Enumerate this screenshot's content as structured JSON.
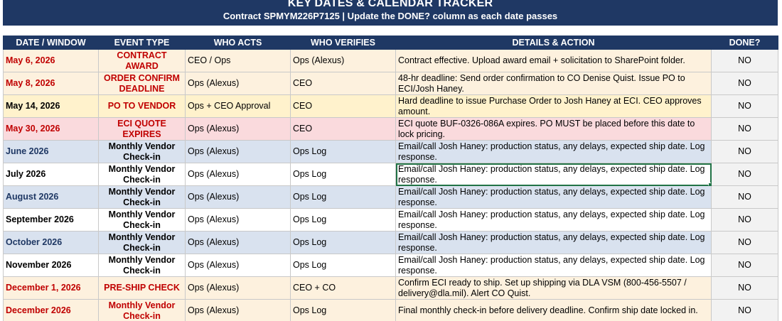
{
  "header": {
    "title": "KEY DATES & CALENDAR TRACKER",
    "subtitle": "Contract SPMYM226P7125  |  Update the DONE? column as each date passes"
  },
  "columns": [
    "DATE / WINDOW",
    "EVENT TYPE",
    "WHO ACTS",
    "WHO VERIFIES",
    "DETAILS & ACTION",
    "DONE?"
  ],
  "colors": {
    "header_bg": "#1f3864",
    "row_orange": "#fdf1de",
    "row_yellow": "#fff2cc",
    "row_pink": "#fadadd",
    "row_blue": "#d9e2ef",
    "text_red": "#c00000",
    "text_navy": "#1f3864",
    "selection": "#217346"
  },
  "rows": [
    {
      "date": "May 6, 2026",
      "event": "CONTRACT AWARD",
      "who_acts": "CEO / Ops",
      "who_verifies": "Ops (Alexus)",
      "details": "Contract effective. Upload award email + solicitation to SharePoint folder.",
      "done": "NO",
      "fill": "orange",
      "date_color": "red",
      "event_color": "red"
    },
    {
      "date": "May 8, 2026",
      "event": "ORDER CONFIRM DEADLINE",
      "who_acts": "Ops (Alexus)",
      "who_verifies": "CEO",
      "details": "48-hr deadline: Send order confirmation to CO Denise Quist. Issue PO to ECI/Josh Haney.",
      "done": "NO",
      "fill": "orange",
      "date_color": "red",
      "event_color": "red"
    },
    {
      "date": "May 14, 2026",
      "event": "PO TO VENDOR",
      "who_acts": "Ops + CEO Approval",
      "who_verifies": "CEO",
      "details": "Hard deadline to issue Purchase Order to Josh Haney at ECI. CEO approves amount.",
      "done": "NO",
      "fill": "yellow",
      "date_color": "black",
      "event_color": "red"
    },
    {
      "date": "May 30, 2026",
      "event": "ECI QUOTE EXPIRES",
      "who_acts": "Ops (Alexus)",
      "who_verifies": "CEO",
      "details": "ECI quote BUF-0326-086A expires. PO MUST be placed before this date to lock pricing.",
      "done": "NO",
      "fill": "pink",
      "date_color": "red",
      "event_color": "red"
    },
    {
      "date": "June 2026",
      "event": "Monthly Vendor Check-in",
      "who_acts": "Ops (Alexus)",
      "who_verifies": "Ops Log",
      "details": "Email/call Josh Haney: production status, any delays, expected ship date. Log response.",
      "done": "NO",
      "fill": "blue",
      "date_color": "navy",
      "event_color": "black"
    },
    {
      "date": "July 2026",
      "event": "Monthly Vendor Check-in",
      "who_acts": "Ops (Alexus)",
      "who_verifies": "Ops Log",
      "details": "Email/call Josh Haney: production status, any delays, expected ship date. Log response.",
      "done": "NO",
      "fill": "white",
      "date_color": "black",
      "event_color": "black",
      "selected": true
    },
    {
      "date": "August 2026",
      "event": "Monthly Vendor Check-in",
      "who_acts": "Ops (Alexus)",
      "who_verifies": "Ops Log",
      "details": "Email/call Josh Haney: production status, any delays, expected ship date. Log response.",
      "done": "NO",
      "fill": "blue",
      "date_color": "navy",
      "event_color": "black"
    },
    {
      "date": "September 2026",
      "event": "Monthly Vendor Check-in",
      "who_acts": "Ops (Alexus)",
      "who_verifies": "Ops Log",
      "details": "Email/call Josh Haney: production status, any delays, expected ship date. Log response.",
      "done": "NO",
      "fill": "white",
      "date_color": "black",
      "event_color": "black"
    },
    {
      "date": "October 2026",
      "event": "Monthly Vendor Check-in",
      "who_acts": "Ops (Alexus)",
      "who_verifies": "Ops Log",
      "details": "Email/call Josh Haney: production status, any delays, expected ship date. Log response.",
      "done": "NO",
      "fill": "blue",
      "date_color": "navy",
      "event_color": "black"
    },
    {
      "date": "November 2026",
      "event": "Monthly Vendor Check-in",
      "who_acts": "Ops (Alexus)",
      "who_verifies": "Ops Log",
      "details": "Email/call Josh Haney: production status, any delays, expected ship date. Log response.",
      "done": "NO",
      "fill": "white",
      "date_color": "black",
      "event_color": "black"
    },
    {
      "date": "December 1, 2026",
      "event": "PRE-SHIP CHECK",
      "who_acts": "Ops (Alexus)",
      "who_verifies": "CEO + CO",
      "details": "Confirm ECI ready to ship. Set up shipping via DLA VSM (800-456-5507 / delivery@dla.mil). Alert CO Quist.",
      "done": "NO",
      "fill": "orange",
      "date_color": "red",
      "event_color": "red"
    },
    {
      "date": "December 2026",
      "event": "Monthly Vendor Check-in",
      "who_acts": "Ops (Alexus)",
      "who_verifies": "Ops Log",
      "details": "Final monthly check-in before delivery deadline. Confirm ship date locked in.",
      "done": "NO",
      "fill": "orange",
      "date_color": "red",
      "event_color": "red"
    }
  ]
}
